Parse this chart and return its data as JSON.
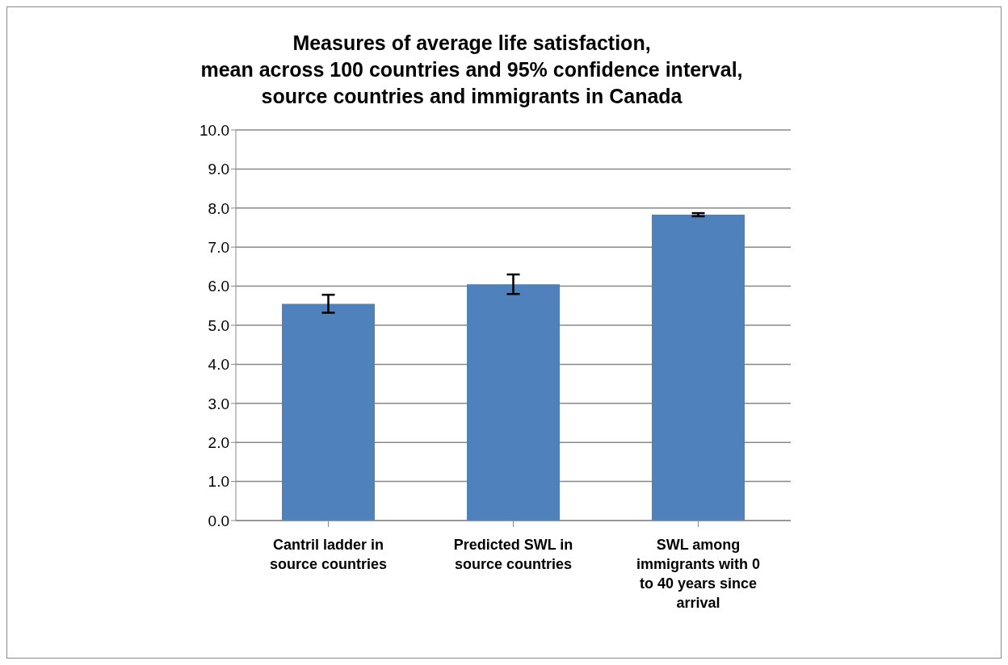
{
  "chart_data": {
    "type": "bar",
    "title": "Measures of average life satisfaction,\nmean across 100 countries and 95% confidence interval,\nsource countries and immigrants in Canada",
    "categories": [
      "Cantril ladder in source countries",
      "Predicted SWL in source countries",
      "SWL among immigrants with 0 to 40 years since arrival"
    ],
    "values": [
      5.55,
      6.05,
      7.83
    ],
    "color": "#4f81bd",
    "errors": [
      [
        5.32,
        5.78
      ],
      [
        5.8,
        6.3
      ],
      [
        7.79,
        7.87
      ]
    ],
    "ylim": [
      0,
      10
    ],
    "yticks": [
      {
        "value": 0,
        "label": "0.0"
      },
      {
        "value": 1,
        "label": "1.0"
      },
      {
        "value": 2,
        "label": "2.0"
      },
      {
        "value": 3,
        "label": "3.0"
      },
      {
        "value": 4,
        "label": "4.0"
      },
      {
        "value": 5,
        "label": "5.0"
      },
      {
        "value": 6,
        "label": "6.0"
      },
      {
        "value": 7,
        "label": "7.0"
      },
      {
        "value": 8,
        "label": "8.0"
      },
      {
        "value": 9,
        "label": "9.0"
      },
      {
        "value": 10,
        "label": "10.0"
      }
    ],
    "grid": "y",
    "legend": false
  }
}
